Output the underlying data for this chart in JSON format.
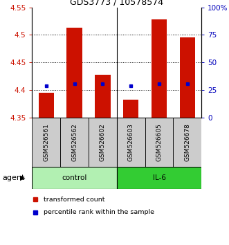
{
  "title": "GDS3773 / 10578574",
  "samples": [
    "GSM526561",
    "GSM526562",
    "GSM526602",
    "GSM526603",
    "GSM526605",
    "GSM526678"
  ],
  "bar_values": [
    4.395,
    4.513,
    4.428,
    4.382,
    4.528,
    4.495
  ],
  "bar_bottom": 4.35,
  "percentile_values": [
    4.408,
    4.411,
    4.411,
    4.408,
    4.411,
    4.411
  ],
  "ylim": [
    4.35,
    4.55
  ],
  "yticks_left": [
    4.35,
    4.4,
    4.45,
    4.5,
    4.55
  ],
  "ytick_right_labels": [
    "0",
    "25",
    "50",
    "75",
    "100%"
  ],
  "yticks_right_pos": [
    4.35,
    4.4,
    4.45,
    4.5,
    4.55
  ],
  "gridlines": [
    4.4,
    4.45,
    4.5
  ],
  "control_color": "#b2f0b2",
  "il6_color": "#33cc33",
  "sample_bg_color": "#cccccc",
  "bar_color": "#cc1100",
  "percentile_color": "#0000cc",
  "legend_items": [
    {
      "label": "transformed count",
      "color": "#cc1100"
    },
    {
      "label": "percentile rank within the sample",
      "color": "#0000cc"
    }
  ],
  "agent_label": "agent",
  "left_label_color": "#cc1100",
  "right_label_color": "#0000bb"
}
